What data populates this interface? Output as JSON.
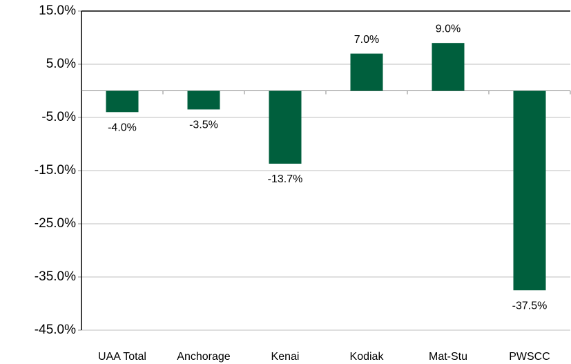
{
  "chart_data": {
    "type": "bar",
    "categories": [
      "UAA Total",
      "Anchorage",
      "Kenai",
      "Kodiak",
      "Mat-Stu",
      "PWSCC"
    ],
    "values": [
      -4.0,
      -3.5,
      -13.7,
      7.0,
      9.0,
      -37.5
    ],
    "value_labels": [
      "-4.0%",
      "-3.5%",
      "-13.7%",
      "7.0%",
      "9.0%",
      "-37.5%"
    ],
    "color": "#005f3d",
    "ylim": [
      -45,
      15
    ],
    "yticks": [
      {
        "value": -45,
        "label": "-45.0%"
      },
      {
        "value": -35,
        "label": "-35.0%"
      },
      {
        "value": -25,
        "label": "-25.0%"
      },
      {
        "value": -15,
        "label": "-15.0%"
      },
      {
        "value": -5,
        "label": "-5.0%"
      },
      {
        "value": 5,
        "label": "5.0%"
      },
      {
        "value": 15,
        "label": "15.0%"
      }
    ],
    "grid": true
  }
}
